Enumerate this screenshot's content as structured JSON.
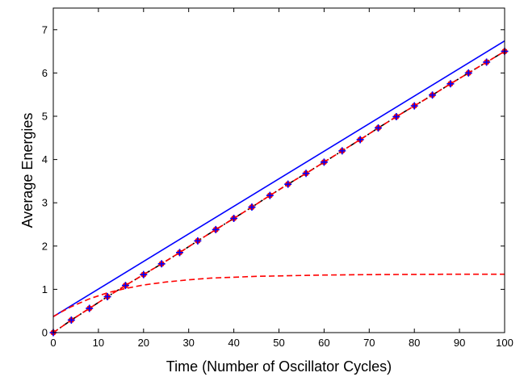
{
  "chart_data": {
    "type": "line",
    "title": "",
    "xlabel": "Time (Number of Oscillator Cycles)",
    "ylabel": "Average Energies",
    "xlim": [
      0,
      100
    ],
    "ylim": [
      0,
      7.5
    ],
    "xticks": [
      0,
      10,
      20,
      30,
      40,
      50,
      60,
      70,
      80,
      90,
      100
    ],
    "yticks": [
      0,
      1,
      2,
      3,
      4,
      5,
      6,
      7
    ],
    "grid": false,
    "series": [
      {
        "name": "Blue solid line",
        "style": "solid",
        "color": "#0000ff",
        "x": [
          0,
          100
        ],
        "y": [
          0.37,
          6.74
        ]
      },
      {
        "name": "Black dash-dot line",
        "style": "dashdot",
        "color": "#000000",
        "x": [
          0,
          4,
          8,
          12,
          16,
          20,
          24,
          28,
          32,
          36,
          40,
          44,
          48,
          52,
          56,
          60,
          64,
          68,
          72,
          76,
          80,
          84,
          88,
          92,
          96,
          100
        ],
        "y": [
          0.0,
          0.29,
          0.56,
          0.83,
          1.09,
          1.34,
          1.59,
          1.85,
          2.12,
          2.38,
          2.64,
          2.9,
          3.17,
          3.43,
          3.68,
          3.94,
          4.2,
          4.46,
          4.73,
          4.99,
          5.24,
          5.49,
          5.75,
          6.0,
          6.25,
          6.5
        ]
      },
      {
        "name": "Red dashed line (linear)",
        "style": "dashed",
        "color": "#ff0000",
        "x": [
          0,
          4,
          8,
          12,
          16,
          20,
          24,
          28,
          32,
          36,
          40,
          44,
          48,
          52,
          56,
          60,
          64,
          68,
          72,
          76,
          80,
          84,
          88,
          92,
          96,
          100
        ],
        "y": [
          0.0,
          0.29,
          0.56,
          0.83,
          1.09,
          1.34,
          1.59,
          1.85,
          2.12,
          2.38,
          2.64,
          2.9,
          3.17,
          3.43,
          3.68,
          3.94,
          4.2,
          4.46,
          4.73,
          4.99,
          5.24,
          5.49,
          5.75,
          6.0,
          6.25,
          6.5
        ]
      },
      {
        "name": "Red dashed line (saturating)",
        "style": "dashed",
        "color": "#ff0000",
        "x": [
          0,
          2,
          4,
          6,
          8,
          10,
          12,
          14,
          16,
          18,
          20,
          25,
          30,
          35,
          40,
          45,
          50,
          60,
          70,
          80,
          90,
          100
        ],
        "y": [
          0.37,
          0.49,
          0.6,
          0.69,
          0.78,
          0.85,
          0.92,
          0.97,
          1.02,
          1.06,
          1.1,
          1.17,
          1.22,
          1.26,
          1.28,
          1.3,
          1.31,
          1.33,
          1.34,
          1.345,
          1.35,
          1.35
        ]
      },
      {
        "name": "Markers",
        "style": "markers",
        "color": "#ff0000",
        "marker_edge_color": "#0000ff",
        "x": [
          0,
          4,
          8,
          12,
          16,
          20,
          24,
          28,
          32,
          36,
          40,
          44,
          48,
          52,
          56,
          60,
          64,
          68,
          72,
          76,
          80,
          84,
          88,
          92,
          96,
          100
        ],
        "y": [
          0.0,
          0.29,
          0.56,
          0.83,
          1.09,
          1.34,
          1.59,
          1.85,
          2.12,
          2.38,
          2.64,
          2.9,
          3.17,
          3.43,
          3.68,
          3.94,
          4.2,
          4.46,
          4.73,
          4.99,
          5.24,
          5.49,
          5.75,
          6.0,
          6.25,
          6.5
        ]
      }
    ]
  }
}
